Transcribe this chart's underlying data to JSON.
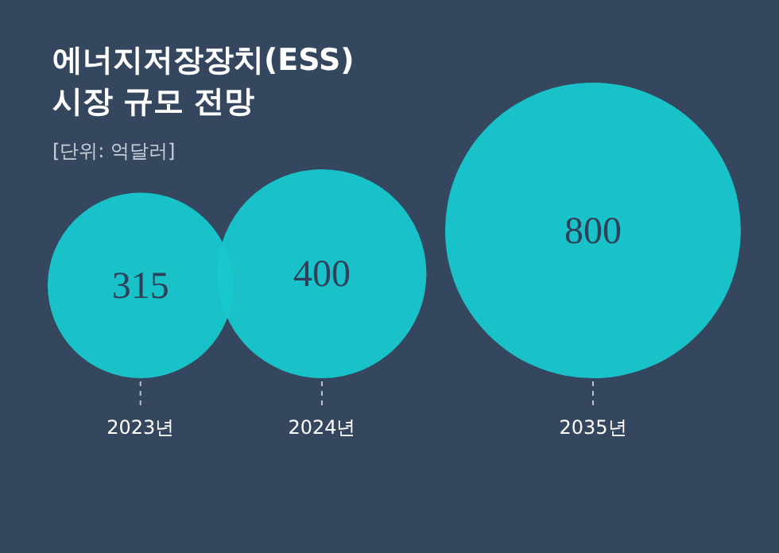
{
  "chart_data": {
    "type": "other",
    "title": "에너지저장장치(ESS)\n시장 규모 전망",
    "subtitle": "[단위: 억달러]",
    "categories": [
      "2023년",
      "2024년",
      "2035년"
    ],
    "values": [
      315,
      400,
      800
    ],
    "color": "#17c9cd",
    "data_labels": true
  }
}
